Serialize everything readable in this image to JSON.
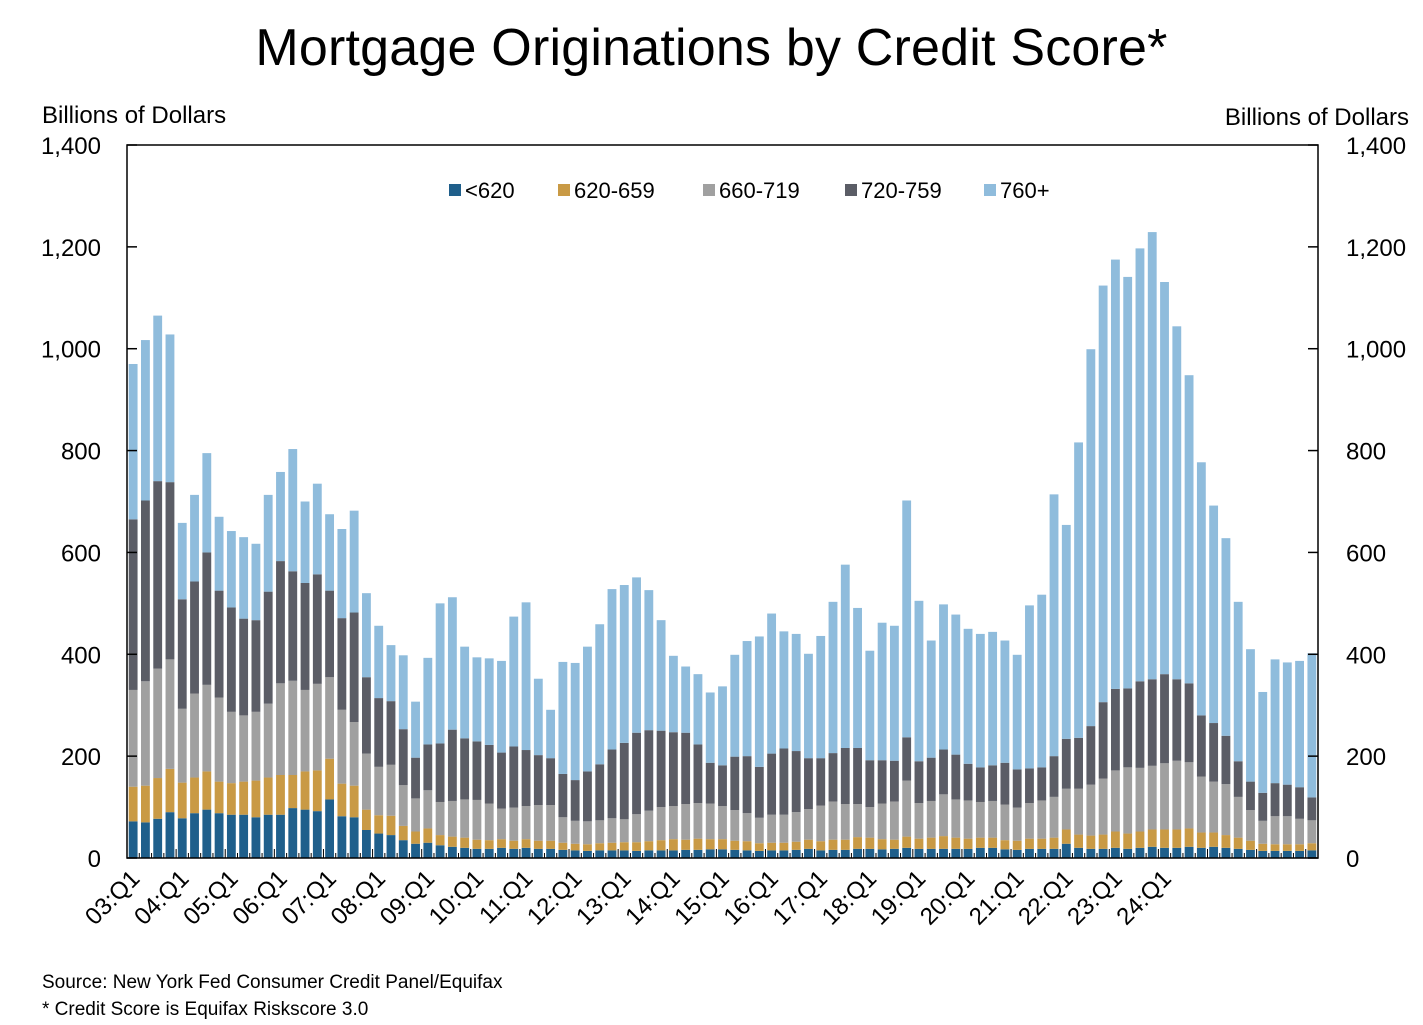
{
  "chart_data": {
    "type": "bar",
    "stacked": true,
    "title": "Mortgage Originations by Credit Score*",
    "ylabel_left": "Billions of Dollars",
    "ylabel_right": "Billions of Dollars",
    "ylim": [
      0,
      1400
    ],
    "yticks": [
      "0",
      "200",
      "400",
      "600",
      "800",
      "1,000",
      "1,200",
      "1,400"
    ],
    "ytick_values": [
      0,
      200,
      400,
      600,
      800,
      1000,
      1200,
      1400
    ],
    "xtick_labels": [
      "03:Q1",
      "04:Q1",
      "05:Q1",
      "06:Q1",
      "07:Q1",
      "08:Q1",
      "09:Q1",
      "10:Q1",
      "11:Q1",
      "12:Q1",
      "13:Q1",
      "14:Q1",
      "15:Q1",
      "16:Q1",
      "17:Q1",
      "18:Q1",
      "19:Q1",
      "20:Q1",
      "21:Q1",
      "22:Q1",
      "23:Q1",
      "24:Q1"
    ],
    "first_quarter": "2003:Q1",
    "last_quarter": "2024:Q1",
    "grid": false,
    "legend_position": "top-center",
    "colors": [
      "#1f5f8b",
      "#c99a45",
      "#a0a0a0",
      "#5b5d66",
      "#8fbcdc"
    ],
    "series": [
      {
        "name": "<620",
        "values": [
          72,
          70,
          77,
          90,
          78,
          88,
          95,
          88,
          85,
          85,
          80,
          85,
          85,
          98,
          95,
          92,
          115,
          82,
          80,
          55,
          48,
          45,
          35,
          28,
          30,
          25,
          22,
          20,
          18,
          18,
          20,
          18,
          20,
          18,
          18,
          16,
          15,
          14,
          15,
          15,
          15,
          14,
          15,
          15,
          15,
          16,
          16,
          17,
          17,
          16,
          15,
          14,
          15,
          15,
          16,
          18,
          15,
          16,
          16,
          18,
          18,
          17,
          18,
          20,
          18,
          18,
          18,
          18,
          18,
          20,
          20,
          17,
          16,
          18,
          18,
          18,
          28,
          20,
          18,
          18,
          20,
          18,
          20,
          22,
          20,
          20,
          22,
          20,
          22,
          20,
          18,
          16,
          14,
          14,
          14,
          14,
          15
        ]
      },
      {
        "name": "620-659",
        "values": [
          68,
          72,
          80,
          85,
          70,
          70,
          75,
          62,
          62,
          65,
          72,
          73,
          78,
          65,
          75,
          80,
          80,
          64,
          62,
          40,
          36,
          38,
          28,
          24,
          28,
          20,
          20,
          20,
          18,
          17,
          17,
          16,
          17,
          16,
          16,
          14,
          13,
          13,
          14,
          15,
          16,
          17,
          18,
          20,
          22,
          20,
          22,
          20,
          20,
          18,
          18,
          15,
          15,
          15,
          16,
          18,
          18,
          20,
          20,
          23,
          22,
          20,
          18,
          22,
          20,
          22,
          25,
          22,
          20,
          20,
          20,
          18,
          18,
          20,
          20,
          22,
          28,
          26,
          26,
          28,
          32,
          30,
          32,
          34,
          36,
          36,
          36,
          30,
          28,
          25,
          22,
          18,
          14,
          13,
          13,
          13,
          14
        ]
      },
      {
        "name": "660-719",
        "values": [
          190,
          205,
          215,
          215,
          145,
          165,
          170,
          165,
          140,
          130,
          135,
          145,
          180,
          185,
          160,
          170,
          160,
          145,
          125,
          110,
          95,
          100,
          80,
          65,
          75,
          65,
          70,
          75,
          78,
          72,
          60,
          65,
          65,
          70,
          70,
          50,
          45,
          45,
          45,
          48,
          45,
          55,
          60,
          65,
          65,
          70,
          70,
          70,
          65,
          60,
          55,
          50,
          55,
          55,
          58,
          60,
          70,
          75,
          70,
          65,
          60,
          70,
          75,
          110,
          70,
          72,
          82,
          75,
          75,
          70,
          72,
          70,
          65,
          70,
          75,
          80,
          80,
          90,
          100,
          110,
          120,
          130,
          125,
          125,
          130,
          135,
          130,
          110,
          100,
          100,
          80,
          60,
          45,
          55,
          55,
          50,
          45
        ]
      },
      {
        "name": "720-759",
        "values": [
          335,
          355,
          368,
          348,
          215,
          220,
          260,
          210,
          205,
          190,
          180,
          220,
          240,
          215,
          210,
          215,
          170,
          180,
          215,
          150,
          135,
          125,
          110,
          80,
          90,
          115,
          140,
          120,
          115,
          115,
          110,
          120,
          110,
          98,
          92,
          85,
          80,
          98,
          110,
          135,
          150,
          160,
          158,
          150,
          145,
          140,
          115,
          80,
          80,
          105,
          112,
          100,
          120,
          130,
          120,
          100,
          93,
          95,
          110,
          110,
          92,
          85,
          80,
          85,
          82,
          85,
          88,
          88,
          72,
          68,
          70,
          82,
          75,
          68,
          65,
          80,
          98,
          100,
          115,
          150,
          160,
          155,
          170,
          170,
          175,
          160,
          155,
          120,
          115,
          95,
          70,
          56,
          55,
          65,
          62,
          62,
          45
        ]
      },
      {
        "name": "760+",
        "values": [
          305,
          315,
          325,
          290,
          150,
          170,
          195,
          145,
          150,
          160,
          150,
          190,
          175,
          240,
          160,
          178,
          150,
          175,
          200,
          165,
          142,
          110,
          145,
          110,
          170,
          275,
          260,
          180,
          165,
          170,
          180,
          255,
          290,
          150,
          95,
          220,
          230,
          245,
          275,
          315,
          310,
          305,
          275,
          217,
          150,
          130,
          138,
          138,
          155,
          200,
          226,
          256,
          275,
          230,
          230,
          205,
          240,
          297,
          360,
          275,
          215,
          270,
          265,
          465,
          315,
          230,
          285,
          275,
          265,
          262,
          262,
          240,
          225,
          320,
          339,
          514,
          420,
          580,
          740,
          818,
          843,
          808,
          850,
          878,
          770,
          693,
          605,
          497,
          427,
          388,
          313,
          260,
          198,
          243,
          240,
          248,
          283
        ]
      }
    ]
  },
  "footer": {
    "source": "Source: New York Fed Consumer Credit Panel/Equifax",
    "note": "* Credit Score is Equifax Riskscore 3.0"
  }
}
